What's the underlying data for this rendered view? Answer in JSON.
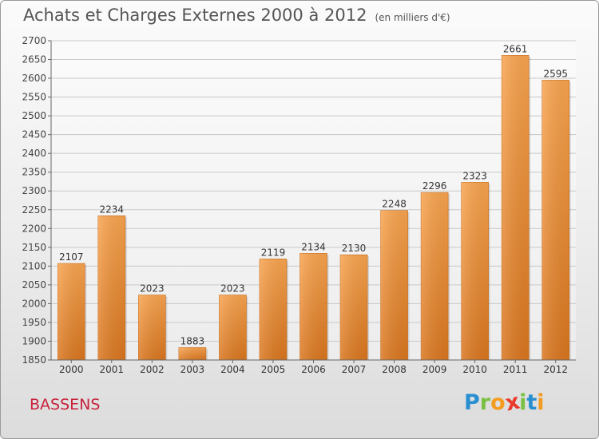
{
  "header": {
    "title": "Achats et Charges Externes 2000 à 2012",
    "subtitle": "(en milliers d'€)"
  },
  "location": "BASSENS",
  "brand": {
    "letters": [
      "P",
      "r",
      "o",
      "x",
      "i",
      "t",
      "i"
    ],
    "colors": [
      "#2a8fd1",
      "#7ac143",
      "#f39c1f",
      "#e8392b",
      "#7ac143",
      "#2a8fd1",
      "#f39c1f"
    ]
  },
  "chart_data": {
    "type": "bar",
    "categories": [
      "2000",
      "2001",
      "2002",
      "2003",
      "2004",
      "2005",
      "2006",
      "2007",
      "2008",
      "2009",
      "2010",
      "2011",
      "2012"
    ],
    "values": [
      2107,
      2234,
      2023,
      1883,
      2023,
      2119,
      2134,
      2130,
      2248,
      2296,
      2323,
      2661,
      2595
    ],
    "ylim": [
      1850,
      2700
    ],
    "ytick_step": 50,
    "grid": true,
    "bar_color": "#f0923a"
  }
}
